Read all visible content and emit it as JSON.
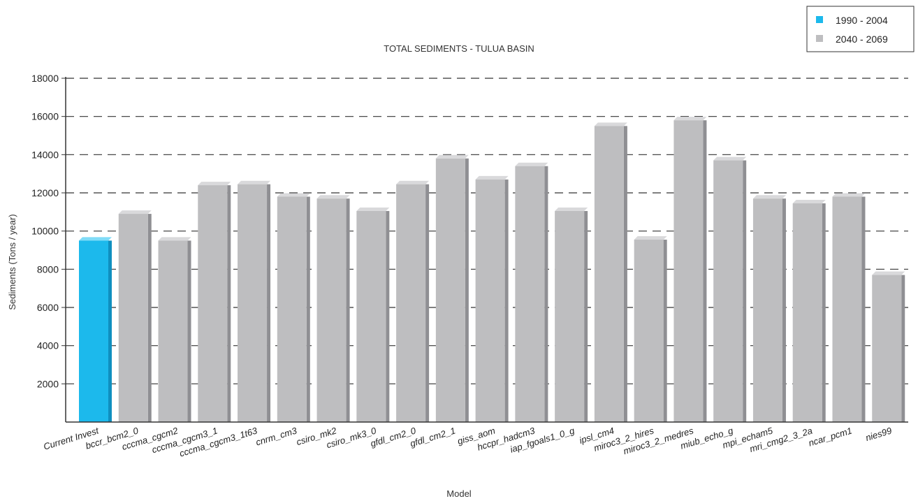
{
  "chart_data": {
    "type": "bar",
    "title": "TOTAL SEDIMENTS - TULUA BASIN",
    "xlabel": "Model",
    "ylabel": "Sediments (Tons / year)",
    "ylim": [
      0,
      18000
    ],
    "yticks": [
      2000,
      4000,
      6000,
      8000,
      10000,
      12000,
      14000,
      16000,
      18000
    ],
    "grid": "horizontal dashed",
    "legend_position": "top-right",
    "categories": [
      "Current Invest",
      "bccr_bcm2_0",
      "cccma_cgcm2",
      "cccma_cgcm3_1",
      "cccma_cgcm3_1t63",
      "cnrm_cm3",
      "csiro_mk2",
      "csiro_mk3_0",
      "gfdl_cm2_0",
      "gfdl_cm2_1",
      "giss_aom",
      "hccpr_hadcm3",
      "iap_fgoals1_0_g",
      "ipsl_cm4",
      "miroc3_2_hires",
      "miroc3_2_medres",
      "miub_echo_g",
      "mpi_echam5",
      "mri_cmg2_3_2a",
      "ncar_pcm1",
      "nies99"
    ],
    "values": [
      9500,
      10900,
      9500,
      12400,
      12450,
      11800,
      11700,
      11050,
      12450,
      13800,
      12700,
      13400,
      11050,
      15500,
      9550,
      15800,
      13700,
      11700,
      11450,
      11800,
      7700
    ],
    "series": [
      {
        "name": "1990 - 2004",
        "color": "#1cb9ec",
        "indices": [
          0
        ]
      },
      {
        "name": "2040 - 2069",
        "color": "#bebec0",
        "indices": [
          1,
          2,
          3,
          4,
          5,
          6,
          7,
          8,
          9,
          10,
          11,
          12,
          13,
          14,
          15,
          16,
          17,
          18,
          19,
          20
        ]
      }
    ]
  }
}
